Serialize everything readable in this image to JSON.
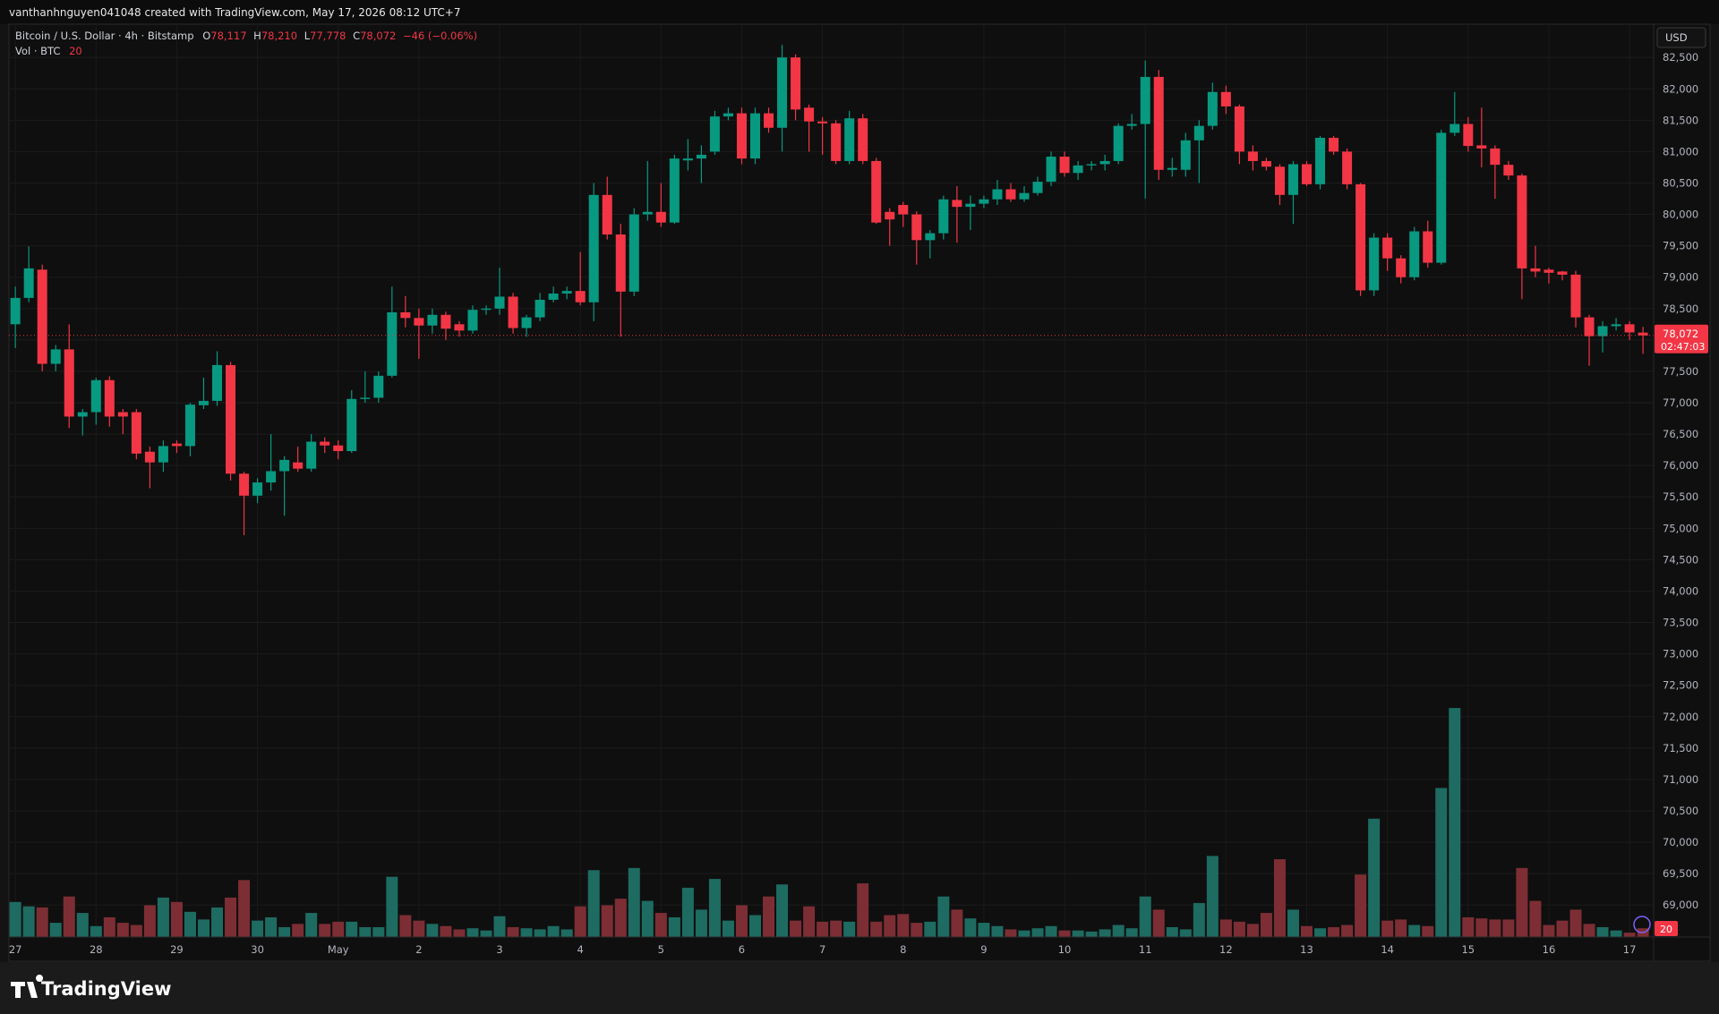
{
  "attribution": "vanthanhnguyen041048 created with TradingView.com, May 17, 2026 08:12 UTC+7",
  "brand": "TradingView",
  "chart_data": {
    "type": "candlestick",
    "legend": {
      "symbol": "Bitcoin / U.S. Dollar · 4h · Bitstamp",
      "o_label": "O",
      "o": "78,117",
      "h_label": "H",
      "h": "78,210",
      "l_label": "L",
      "l": "77,778",
      "c_label": "C",
      "c": "78,072",
      "change": "−46 (−0.06%)"
    },
    "volume_legend": {
      "name": "Vol · BTC",
      "length": "20"
    },
    "currency": "USD",
    "countdown": "02:47:03",
    "up_color": "#089981",
    "down_color": "#f23645",
    "volume_up_color": "#1e6b61",
    "volume_down_color": "#7c2e34",
    "categories": [
      "27",
      null,
      null,
      null,
      null,
      null,
      "28",
      null,
      null,
      null,
      null,
      null,
      "29",
      null,
      null,
      null,
      null,
      null,
      "30",
      null,
      null,
      null,
      null,
      null,
      "May",
      null,
      null,
      null,
      null,
      null,
      "2",
      null,
      null,
      null,
      null,
      null,
      "3",
      null,
      null,
      null,
      null,
      null,
      "4",
      null,
      null,
      null,
      null,
      null,
      "5",
      null,
      null,
      null,
      null,
      null,
      "6",
      null,
      null,
      null,
      null,
      null,
      "7",
      null,
      null,
      null,
      null,
      null,
      "8",
      null,
      null,
      null,
      null,
      null,
      "9",
      null,
      null,
      null,
      null,
      null,
      "10",
      null,
      null,
      null,
      null,
      null,
      "11",
      null,
      null,
      null,
      null,
      null,
      "12",
      null,
      null,
      null,
      null,
      null,
      "13",
      null,
      null,
      null,
      null,
      null,
      "14",
      null,
      null,
      null,
      null,
      null,
      "15",
      null,
      null,
      null,
      null,
      null,
      "16",
      null,
      null,
      null,
      null,
      null,
      "17",
      null
    ],
    "open": [
      78250,
      78670,
      79120,
      77620,
      77850,
      76780,
      76850,
      77360,
      76850,
      76850,
      76220,
      76050,
      76350,
      76310,
      76960,
      77030,
      77600,
      75870,
      75520,
      75730,
      75910,
      76050,
      75950,
      76380,
      76320,
      76230,
      77060,
      77080,
      77430,
      78440,
      78350,
      78230,
      78400,
      78250,
      78150,
      78480,
      78500,
      78690,
      78190,
      78360,
      78640,
      78740,
      78780,
      78600,
      80310,
      79680,
      78770,
      80000,
      80040,
      79870,
      80860,
      80890,
      81000,
      81560,
      81610,
      80890,
      81610,
      81380,
      82500,
      81700,
      81480,
      81450,
      80850,
      81530,
      80850,
      80040,
      80150,
      80000,
      79590,
      79700,
      80230,
      80120,
      80170,
      80240,
      80400,
      80240,
      80340,
      80520,
      80920,
      80660,
      80780,
      80800,
      80850,
      81410,
      81440,
      82190,
      80710,
      80710,
      81180,
      81410,
      81950,
      81720,
      81000,
      80850,
      80760,
      80310,
      80800,
      80480,
      81220,
      81000,
      80480,
      78790,
      79630,
      79300,
      79000,
      79730,
      79230,
      81300,
      81440,
      81100,
      81050,
      80790,
      80620,
      79140,
      79120,
      79090,
      79040,
      78360,
      78060,
      78220,
      78250,
      78117
    ],
    "high": [
      78850,
      79490,
      79200,
      77920,
      78250,
      76900,
      77400,
      77420,
      76900,
      76900,
      76300,
      76400,
      76400,
      77000,
      77400,
      77820,
      77650,
      75900,
      75800,
      76500,
      76150,
      76300,
      76500,
      76450,
      76400,
      77200,
      77500,
      77500,
      78850,
      78700,
      78500,
      78500,
      78450,
      78300,
      78550,
      78550,
      79150,
      78750,
      78400,
      78750,
      78850,
      78850,
      79400,
      80500,
      80600,
      79850,
      80100,
      80850,
      80500,
      80950,
      81200,
      81100,
      81650,
      81700,
      81700,
      81700,
      81700,
      82700,
      82550,
      81750,
      81550,
      81500,
      81650,
      81600,
      80900,
      80100,
      80200,
      80050,
      79750,
      80300,
      80450,
      80300,
      80300,
      80550,
      80500,
      80450,
      80600,
      81000,
      81000,
      80850,
      80850,
      80950,
      81450,
      81600,
      82450,
      82300,
      80900,
      81300,
      81500,
      82100,
      82050,
      81750,
      81100,
      80900,
      80800,
      80850,
      80850,
      81250,
      81250,
      81050,
      80500,
      79700,
      79700,
      79350,
      79800,
      79900,
      81350,
      81950,
      81550,
      81700,
      81100,
      80850,
      80650,
      79500,
      79150,
      79100,
      79100,
      78400,
      78300,
      78350,
      78300,
      78210
    ],
    "low": [
      77870,
      78600,
      77500,
      77500,
      76600,
      76480,
      76650,
      76620,
      76500,
      76100,
      75640,
      75900,
      76200,
      76150,
      76900,
      76950,
      75760,
      74890,
      75400,
      75600,
      75200,
      75900,
      75900,
      76200,
      76100,
      76200,
      77000,
      77000,
      77400,
      78200,
      77700,
      78100,
      78000,
      78050,
      78100,
      78400,
      78400,
      78100,
      78050,
      78300,
      78600,
      78650,
      78550,
      78300,
      79600,
      78050,
      78700,
      79900,
      79800,
      79850,
      80700,
      80500,
      80950,
      81500,
      80800,
      80800,
      81300,
      81000,
      81500,
      81000,
      80950,
      80800,
      80800,
      80800,
      79850,
      79500,
      79800,
      79200,
      79300,
      79600,
      79550,
      79750,
      80100,
      80150,
      80200,
      80200,
      80300,
      80450,
      80600,
      80550,
      80700,
      80700,
      80800,
      81350,
      80250,
      80550,
      80600,
      80600,
      80500,
      81350,
      81600,
      80800,
      80700,
      80700,
      80150,
      79850,
      80450,
      80400,
      80950,
      80400,
      78700,
      78700,
      79100,
      78900,
      78950,
      79150,
      79200,
      81250,
      81000,
      80750,
      80250,
      80550,
      78650,
      79000,
      78900,
      78950,
      78200,
      77590,
      77800,
      78150,
      78000,
      77778
    ],
    "close": [
      78670,
      79140,
      77620,
      77850,
      76780,
      76850,
      77360,
      76780,
      76780,
      76190,
      76050,
      76310,
      76310,
      76970,
      77030,
      77600,
      75870,
      75520,
      75730,
      75910,
      76090,
      75950,
      76380,
      76320,
      76230,
      77060,
      77080,
      77430,
      78440,
      78350,
      78230,
      78400,
      78180,
      78150,
      78480,
      78500,
      78690,
      78190,
      78360,
      78640,
      78740,
      78780,
      78600,
      80310,
      79680,
      78770,
      80000,
      80040,
      79870,
      80890,
      80890,
      80950,
      81560,
      81610,
      80890,
      81610,
      81380,
      82500,
      81670,
      81480,
      81450,
      80850,
      81530,
      80850,
      79870,
      79920,
      80000,
      79590,
      79700,
      80240,
      80120,
      80170,
      80240,
      80400,
      80240,
      80340,
      80520,
      80920,
      80660,
      80780,
      80800,
      80850,
      81410,
      81440,
      82190,
      80710,
      80740,
      81180,
      81410,
      81950,
      81720,
      81000,
      80850,
      80760,
      80310,
      80800,
      80480,
      81220,
      81000,
      80480,
      78790,
      79630,
      79300,
      79000,
      79730,
      79230,
      81300,
      81440,
      81090,
      81050,
      80790,
      80620,
      79140,
      79090,
      79070,
      79040,
      78360,
      78060,
      78220,
      78250,
      78120,
      78072
    ],
    "volume": [
      32,
      28,
      27,
      13,
      37,
      22,
      10,
      18,
      13,
      11,
      29,
      36,
      32,
      23,
      16,
      27,
      36,
      52,
      15,
      18,
      9,
      12,
      22,
      12,
      14,
      14,
      9,
      9,
      55,
      20,
      15,
      12,
      10,
      7,
      8,
      6,
      19,
      9,
      8,
      7,
      10,
      7,
      28,
      61,
      29,
      35,
      63,
      33,
      22,
      18,
      45,
      25,
      53,
      15,
      29,
      20,
      37,
      48,
      15,
      28,
      14,
      15,
      14,
      49,
      14,
      20,
      21,
      13,
      14,
      37,
      25,
      17,
      13,
      10,
      7,
      6,
      8,
      10,
      6,
      6,
      5,
      7,
      11,
      8,
      37,
      25,
      9,
      7,
      31,
      74,
      16,
      14,
      12,
      22,
      71,
      25,
      10,
      8,
      9,
      11,
      57,
      108,
      15,
      16,
      11,
      10,
      136,
      209,
      18,
      17,
      16,
      16,
      63,
      33,
      11,
      15,
      25,
      12,
      9,
      6,
      4,
      8
    ],
    "ylim": [
      68490,
      83030
    ],
    "yticks": [
      {
        "value": 82500,
        "label": "82,500"
      },
      {
        "value": 82000,
        "label": "82,000"
      },
      {
        "value": 81500,
        "label": "81,500"
      },
      {
        "value": 81000,
        "label": "81,000"
      },
      {
        "value": 80500,
        "label": "80,500"
      },
      {
        "value": 80000,
        "label": "80,000"
      },
      {
        "value": 79500,
        "label": "79,500"
      },
      {
        "value": 79000,
        "label": "79,000"
      },
      {
        "value": 78500,
        "label": "78,500"
      },
      {
        "value": 78000,
        "label": "78,000"
      },
      {
        "value": 77500,
        "label": "77,500"
      },
      {
        "value": 77000,
        "label": "77,000"
      },
      {
        "value": 76500,
        "label": "76,500"
      },
      {
        "value": 76000,
        "label": "76,000"
      },
      {
        "value": 75500,
        "label": "75,500"
      },
      {
        "value": 75000,
        "label": "75,000"
      },
      {
        "value": 74500,
        "label": "74,500"
      },
      {
        "value": 74000,
        "label": "74,000"
      },
      {
        "value": 73500,
        "label": "73,500"
      },
      {
        "value": 73000,
        "label": "73,000"
      },
      {
        "value": 72500,
        "label": "72,500"
      },
      {
        "value": 72000,
        "label": "72,000"
      },
      {
        "value": 71500,
        "label": "71,500"
      },
      {
        "value": 71000,
        "label": "71,000"
      },
      {
        "value": 70500,
        "label": "70,500"
      },
      {
        "value": 70000,
        "label": "70,000"
      },
      {
        "value": 69500,
        "label": "69,500"
      },
      {
        "value": 69000,
        "label": "69,000"
      }
    ],
    "grid": true
  }
}
